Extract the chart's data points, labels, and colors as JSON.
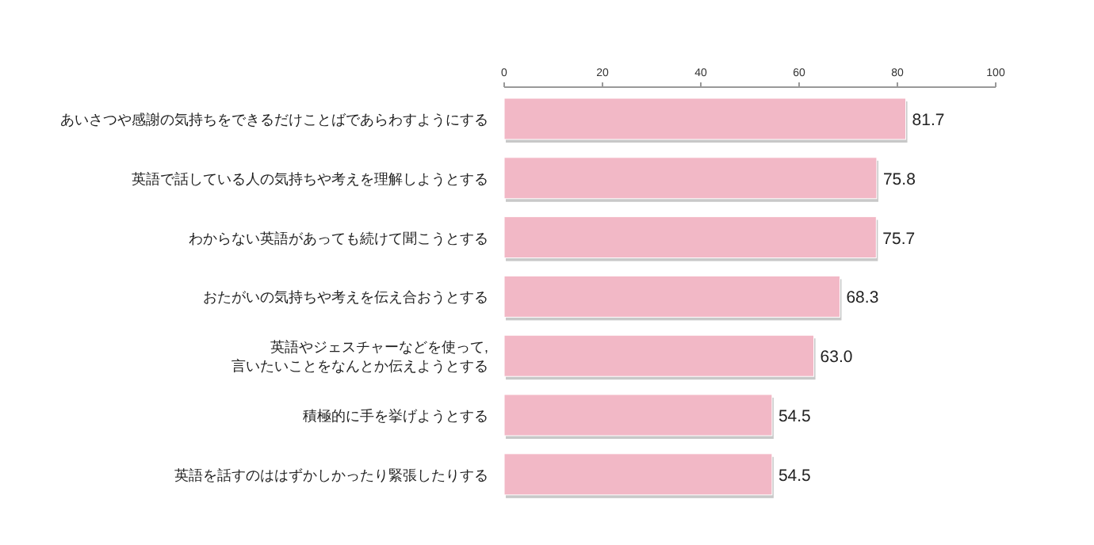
{
  "chart_data": {
    "type": "bar",
    "orientation": "horizontal",
    "categories": [
      "あいさつや感謝の気持ちをできるだけことばであらわすようにする",
      "英語で話している人の気持ちや考えを理解しようとする",
      "わからない英語があっても続けて聞こうとする",
      "おたがいの気持ちや考えを伝え合おうとする",
      "英語やジェスチャーなどを使って,\n言いたいことをなんとか伝えようとする",
      "積極的に手を挙げようとする",
      "英語を話すのははずかしかったり緊張したりする"
    ],
    "values": [
      81.7,
      75.8,
      75.7,
      68.3,
      63.0,
      54.5,
      54.5
    ],
    "value_labels": [
      "81.7",
      "75.8",
      "75.7",
      "68.3",
      "63.0",
      "54.5",
      "54.5"
    ],
    "color": "#f2b8c6",
    "xlim": [
      0,
      100
    ],
    "xticks": [
      0,
      20,
      40,
      60,
      80,
      100
    ],
    "grid": false
  }
}
